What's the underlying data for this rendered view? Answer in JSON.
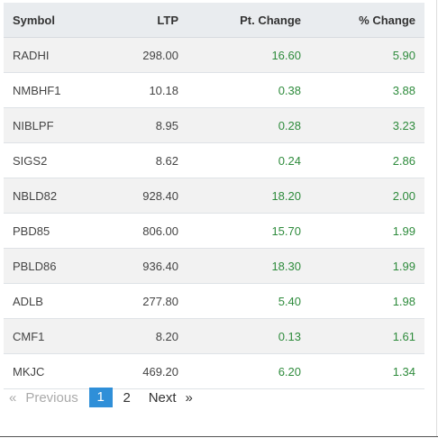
{
  "table": {
    "headers": {
      "symbol": "Symbol",
      "ltp": "LTP",
      "pt_change": "Pt. Change",
      "pct_change": "% Change"
    },
    "rows": [
      {
        "symbol": "RADHI",
        "ltp": "298.00",
        "pt_change": "16.60",
        "pct_change": "5.90"
      },
      {
        "symbol": "NMBHF1",
        "ltp": "10.18",
        "pt_change": "0.38",
        "pct_change": "3.88"
      },
      {
        "symbol": "NIBLPF",
        "ltp": "8.95",
        "pt_change": "0.28",
        "pct_change": "3.23"
      },
      {
        "symbol": "SIGS2",
        "ltp": "8.62",
        "pt_change": "0.24",
        "pct_change": "2.86"
      },
      {
        "symbol": "NBLD82",
        "ltp": "928.40",
        "pt_change": "18.20",
        "pct_change": "2.00"
      },
      {
        "symbol": "PBD85",
        "ltp": "806.00",
        "pt_change": "15.70",
        "pct_change": "1.99"
      },
      {
        "symbol": "PBLD86",
        "ltp": "936.40",
        "pt_change": "18.30",
        "pct_change": "1.99"
      },
      {
        "symbol": "ADLB",
        "ltp": "277.80",
        "pt_change": "5.40",
        "pct_change": "1.98"
      },
      {
        "symbol": "CMF1",
        "ltp": "8.20",
        "pt_change": "0.13",
        "pct_change": "1.61"
      },
      {
        "symbol": "MKJC",
        "ltp": "469.20",
        "pt_change": "6.20",
        "pct_change": "1.34"
      }
    ]
  },
  "pagination": {
    "prev_arrow": "«",
    "prev_label": "Previous",
    "pages": [
      "1",
      "2"
    ],
    "active_page": "1",
    "next_label": "Next",
    "next_arrow": "»"
  },
  "colors": {
    "gain": "#2e8b3c",
    "header_bg": "#e9ecef",
    "stripe_bg": "#f2f2f2",
    "active_page_bg": "#2f8fd8"
  }
}
